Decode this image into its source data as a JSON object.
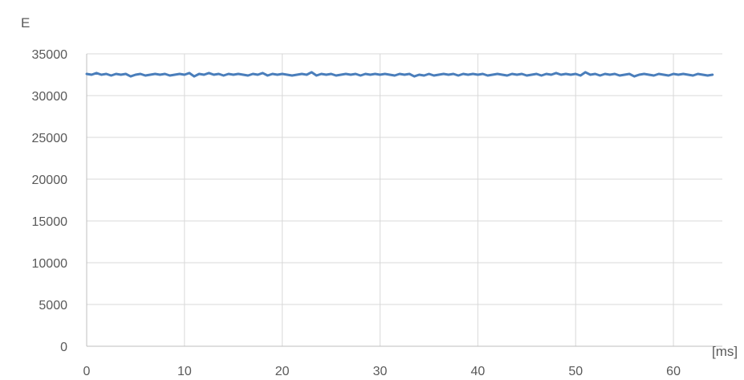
{
  "chart_data": {
    "type": "line",
    "title": "",
    "xlabel": "[ms]",
    "ylabel": "E",
    "xlim": [
      0,
      65
    ],
    "ylim": [
      0,
      35000
    ],
    "x_ticks": [
      0,
      10,
      20,
      30,
      40,
      50,
      60
    ],
    "y_ticks": [
      0,
      5000,
      10000,
      15000,
      20000,
      25000,
      30000,
      35000
    ],
    "x_tick_labels": [
      "0",
      "10",
      "20",
      "30",
      "40",
      "50",
      "60"
    ],
    "y_tick_labels": [
      "0",
      "5000",
      "10000",
      "15000",
      "20000",
      "25000",
      "30000",
      "35000"
    ],
    "grid": true,
    "legend": "none",
    "colors": {
      "line": "#4a7ebb",
      "grid": "#d9d9d9",
      "text": "#595959",
      "axis": "#bfbfbf"
    },
    "series": [
      {
        "x": [
          0,
          0.5,
          1,
          1.5,
          2,
          2.5,
          3,
          3.5,
          4,
          4.5,
          5,
          5.5,
          6,
          6.5,
          7,
          7.5,
          8,
          8.5,
          9,
          9.5,
          10,
          10.5,
          11,
          11.5,
          12,
          12.5,
          13,
          13.5,
          14,
          14.5,
          15,
          15.5,
          16,
          16.5,
          17,
          17.5,
          18,
          18.5,
          19,
          19.5,
          20,
          20.5,
          21,
          21.5,
          22,
          22.5,
          23,
          23.5,
          24,
          24.5,
          25,
          25.5,
          26,
          26.5,
          27,
          27.5,
          28,
          28.5,
          29,
          29.5,
          30,
          30.5,
          31,
          31.5,
          32,
          32.5,
          33,
          33.5,
          34,
          34.5,
          35,
          35.5,
          36,
          36.5,
          37,
          37.5,
          38,
          38.5,
          39,
          39.5,
          40,
          40.5,
          41,
          41.5,
          42,
          42.5,
          43,
          43.5,
          44,
          44.5,
          45,
          45.5,
          46,
          46.5,
          47,
          47.5,
          48,
          48.5,
          49,
          49.5,
          50,
          50.5,
          51,
          51.5,
          52,
          52.5,
          53,
          53.5,
          54,
          54.5,
          55,
          55.5,
          56,
          56.5,
          57,
          57.5,
          58,
          58.5,
          59,
          59.5,
          60,
          60.5,
          61,
          61.5,
          62,
          62.5,
          63,
          63.5,
          64
        ],
        "values": [
          32600,
          32500,
          32700,
          32500,
          32600,
          32400,
          32600,
          32500,
          32600,
          32300,
          32500,
          32600,
          32400,
          32500,
          32600,
          32500,
          32600,
          32400,
          32500,
          32600,
          32500,
          32700,
          32300,
          32600,
          32500,
          32700,
          32500,
          32600,
          32400,
          32600,
          32500,
          32600,
          32500,
          32400,
          32600,
          32500,
          32700,
          32400,
          32600,
          32500,
          32600,
          32500,
          32400,
          32500,
          32600,
          32500,
          32800,
          32400,
          32600,
          32500,
          32600,
          32400,
          32500,
          32600,
          32500,
          32600,
          32400,
          32600,
          32500,
          32600,
          32500,
          32600,
          32500,
          32400,
          32600,
          32500,
          32600,
          32300,
          32500,
          32400,
          32600,
          32400,
          32500,
          32600,
          32500,
          32600,
          32400,
          32600,
          32500,
          32600,
          32500,
          32600,
          32400,
          32500,
          32600,
          32500,
          32400,
          32600,
          32500,
          32600,
          32400,
          32500,
          32600,
          32400,
          32600,
          32500,
          32700,
          32500,
          32600,
          32500,
          32600,
          32400,
          32800,
          32500,
          32600,
          32400,
          32600,
          32500,
          32600,
          32400,
          32500,
          32600,
          32300,
          32500,
          32600,
          32500,
          32400,
          32600,
          32500,
          32400,
          32600,
          32500,
          32600,
          32500,
          32400,
          32600,
          32500,
          32400,
          32500
        ]
      }
    ]
  }
}
